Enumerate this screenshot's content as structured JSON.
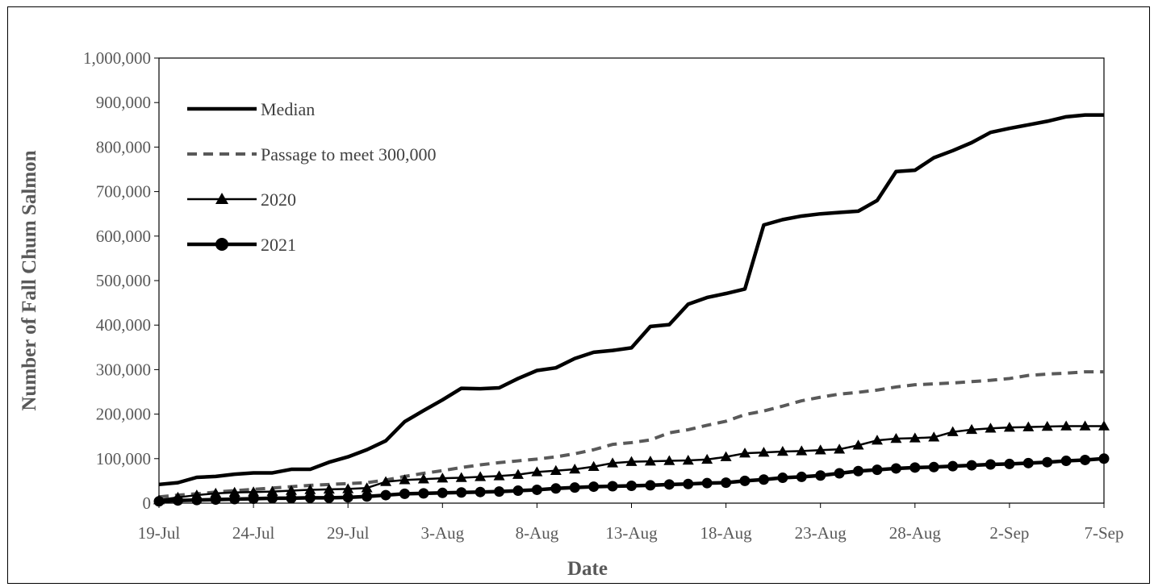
{
  "chart_data": {
    "type": "line",
    "title": "",
    "xlabel": "Date",
    "ylabel": "Number of Fall Chum Salmon",
    "ylim": [
      0,
      1000000
    ],
    "y_ticks": [
      0,
      100000,
      200000,
      300000,
      400000,
      500000,
      600000,
      700000,
      800000,
      900000,
      1000000
    ],
    "y_tick_labels": [
      "0",
      "100,000",
      "200,000",
      "300,000",
      "400,000",
      "500,000",
      "600,000",
      "700,000",
      "800,000",
      "900,000",
      "1,000,000"
    ],
    "x_start": "19-Jul",
    "x_end": "7-Sep",
    "x_tick_labels": [
      "19-Jul",
      "24-Jul",
      "29-Jul",
      "3-Aug",
      "8-Aug",
      "13-Aug",
      "18-Aug",
      "23-Aug",
      "28-Aug",
      "2-Sep",
      "7-Sep"
    ],
    "grid": false,
    "legend_position": "top-left",
    "series": [
      {
        "name": "Median",
        "style": "solid-thick",
        "color": "#000000",
        "values": [
          42000,
          46000,
          58000,
          60000,
          65000,
          68000,
          68000,
          76000,
          76000,
          92000,
          104000,
          120000,
          140000,
          183000,
          208000,
          232000,
          258000,
          257000,
          259000,
          280000,
          298000,
          304000,
          325000,
          339000,
          343000,
          349000,
          397000,
          401000,
          447000,
          462000,
          471000,
          481000,
          625000,
          637000,
          645000,
          650000,
          653000,
          656000,
          680000,
          745000,
          748000,
          776000,
          792000,
          810000,
          833000,
          842000,
          850000,
          858000,
          868000,
          872000,
          872000
        ]
      },
      {
        "name": "Passage to meet 300,000",
        "style": "dashed",
        "color": "#595959",
        "values": [
          14000,
          18000,
          21000,
          25000,
          28000,
          31000,
          34000,
          37000,
          40000,
          42000,
          44000,
          46000,
          52000,
          60000,
          67000,
          73000,
          80000,
          86000,
          91000,
          95000,
          99000,
          104000,
          111000,
          120000,
          132000,
          136000,
          142000,
          158000,
          165000,
          175000,
          184000,
          199000,
          207000,
          218000,
          230000,
          238000,
          245000,
          249000,
          254000,
          261000,
          266000,
          268000,
          270000,
          273000,
          276000,
          280000,
          287000,
          290000,
          292000,
          295000,
          295000
        ]
      },
      {
        "name": "2020",
        "style": "triangle",
        "color": "#000000",
        "values": [
          7000,
          13000,
          18000,
          22000,
          24000,
          25000,
          26000,
          28000,
          30000,
          31000,
          32000,
          34000,
          48000,
          52000,
          54000,
          56000,
          57000,
          59000,
          61000,
          64000,
          70000,
          73000,
          76000,
          82000,
          90000,
          93000,
          94000,
          95000,
          96000,
          98000,
          104000,
          112000,
          114000,
          116000,
          117000,
          119000,
          121000,
          130000,
          141000,
          145000,
          146000,
          148000,
          160000,
          165000,
          168000,
          170000,
          171000,
          172000,
          173000,
          173000,
          173000
        ]
      },
      {
        "name": "2021",
        "style": "circle",
        "color": "#000000",
        "values": [
          4000,
          6000,
          7000,
          8000,
          9000,
          10000,
          11000,
          11000,
          12000,
          12000,
          13000,
          15000,
          18000,
          21000,
          22000,
          23000,
          24000,
          25000,
          26000,
          28000,
          30000,
          33000,
          35000,
          37000,
          38000,
          39000,
          40000,
          42000,
          43000,
          45000,
          46000,
          50000,
          53000,
          57000,
          59000,
          62000,
          67000,
          72000,
          75000,
          78000,
          80000,
          81000,
          83000,
          85000,
          87000,
          88000,
          90000,
          92000,
          95000,
          97000,
          100000
        ]
      }
    ]
  }
}
